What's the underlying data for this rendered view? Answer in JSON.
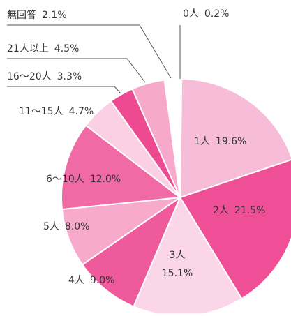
{
  "chart_data": {
    "type": "pie",
    "categories": [
      "0人",
      "1人",
      "2人",
      "3人",
      "4人",
      "5人",
      "6〜10人",
      "11〜15人",
      "16〜20人",
      "21人以上",
      "無回答"
    ],
    "values": [
      0.2,
      19.6,
      21.5,
      15.1,
      9.0,
      8.0,
      12.0,
      4.7,
      3.3,
      4.5,
      2.1
    ],
    "value_labels": [
      "0.2%",
      "19.6%",
      "21.5%",
      "15.1%",
      "9.0%",
      "8.0%",
      "12.0%",
      "4.7%",
      "3.3%",
      "4.5%",
      "2.1%"
    ],
    "colors": [
      "#ffffff",
      "#f7bcd8",
      "#ee4f96",
      "#fbd6e8",
      "#ef5a9c",
      "#f7aacb",
      "#f06aa6",
      "#fbd0e4",
      "#ee4a92",
      "#f7a9cb",
      "#ffffff"
    ]
  }
}
